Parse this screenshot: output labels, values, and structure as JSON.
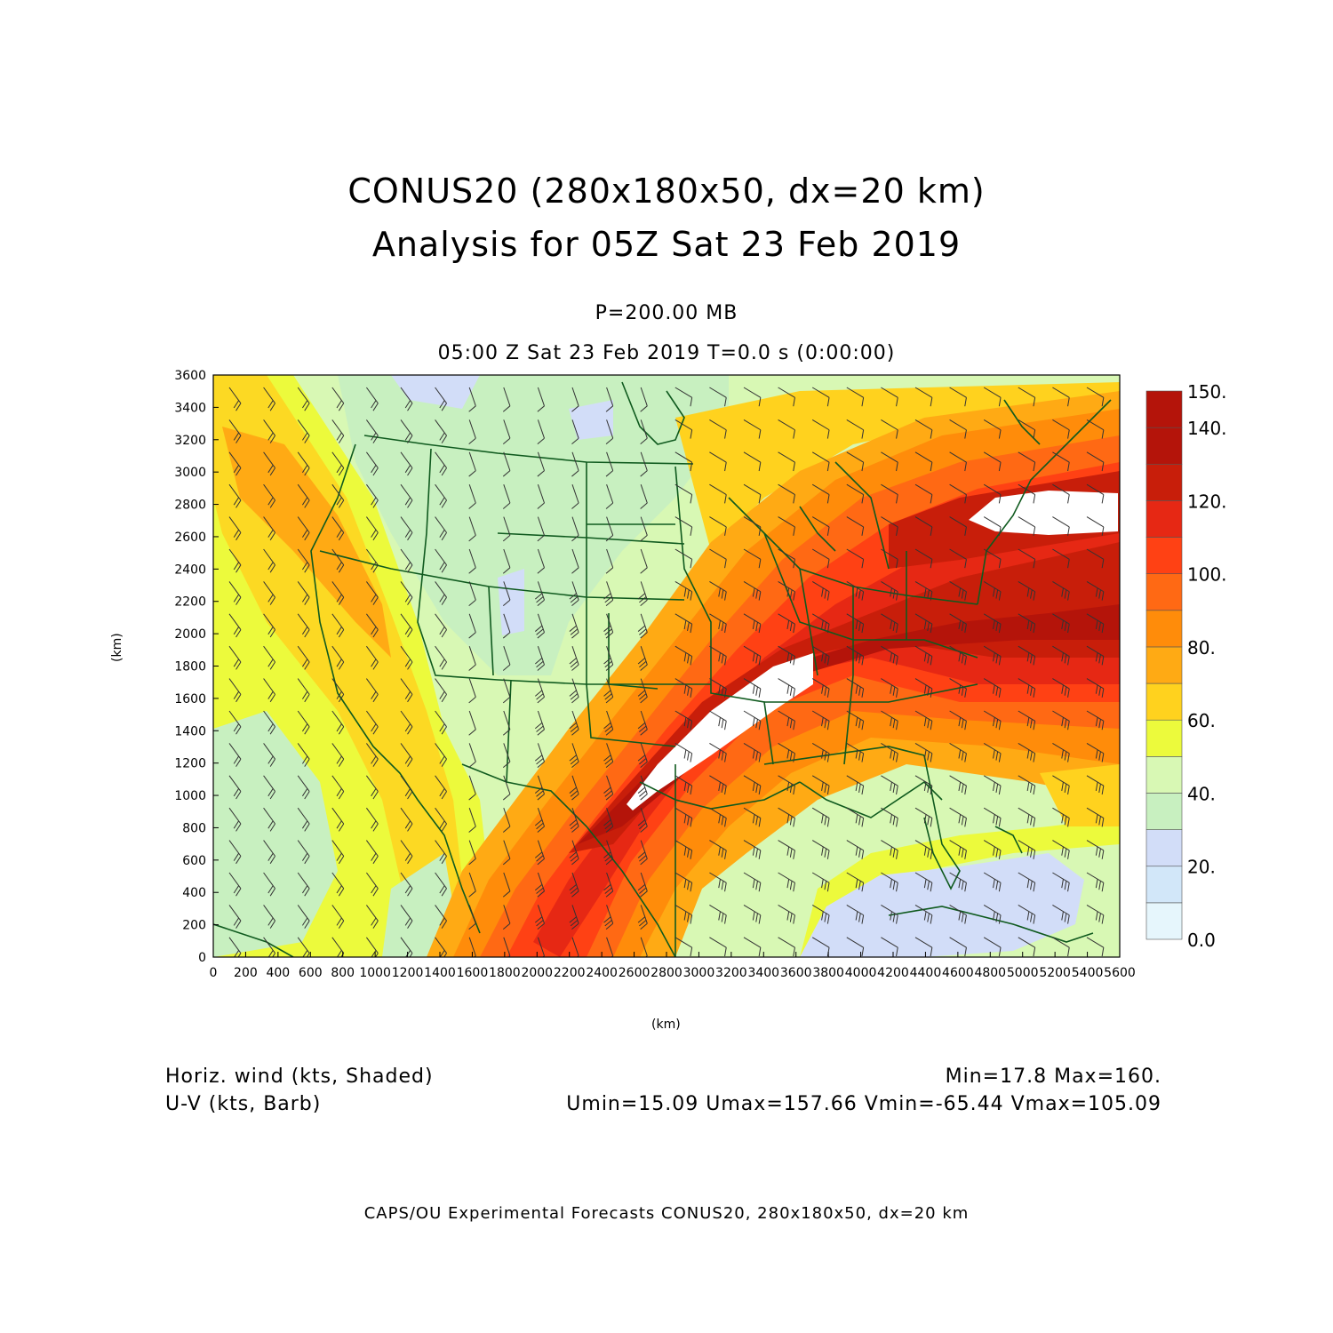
{
  "title": {
    "line1": "CONUS20 (280x180x50, dx=20 km)",
    "line2": "Analysis for 05Z Sat 23 Feb 2019"
  },
  "subtitle": {
    "level": "P=200.00 MB",
    "time": "05:00 Z Sat 23 Feb 2019    T=0.0 s (0:00:00)"
  },
  "axes": {
    "x_unit": "(km)",
    "y_unit": "(km)",
    "x_ticks": [
      "0",
      "200",
      "400",
      "600",
      "800",
      "1000",
      "1200",
      "1400",
      "1600",
      "1800",
      "2000",
      "2200",
      "2400",
      "2600",
      "2800",
      "3000",
      "3200",
      "3400",
      "3600",
      "3800",
      "4000",
      "4200",
      "4400",
      "4600",
      "4800",
      "5000",
      "5200",
      "5400",
      "5600"
    ],
    "y_ticks": [
      "0",
      "200",
      "400",
      "600",
      "800",
      "1000",
      "1200",
      "1400",
      "1600",
      "1800",
      "2000",
      "2200",
      "2400",
      "2600",
      "2800",
      "3000",
      "3200",
      "3400",
      "3600"
    ],
    "x_range": [
      0,
      5600
    ],
    "y_range": [
      0,
      3600
    ]
  },
  "colorbar": {
    "labels": [
      "0.0",
      "20.",
      "40.",
      "60.",
      "80.",
      "100.",
      "120.",
      "140.",
      "150."
    ],
    "levels": [
      0,
      10,
      20,
      30,
      40,
      50,
      60,
      70,
      80,
      90,
      100,
      110,
      120,
      130,
      140,
      150
    ],
    "colors": [
      "#e6f6fc",
      "#d2e7f9",
      "#d2ddf8",
      "#c8f0c0",
      "#d8f8b4",
      "#ecfa3c",
      "#ffd21e",
      "#ffaa14",
      "#ff8c0a",
      "#ff6914",
      "#ff4114",
      "#e62814",
      "#c81e0a",
      "#b4140a",
      "#ffffff"
    ]
  },
  "legend": {
    "field1": "Horiz. wind (kts, Shaded)",
    "field2": "U-V (kts, Barb)",
    "stats1": "Min=17.8 Max=160.",
    "stats2": "Umin=15.09 Umax=157.66 Vmin=-65.44 Vmax=105.09"
  },
  "footer": "CAPS/OU Experimental Forecasts  CONUS20, 280x180x50, dx=20 km",
  "map": {
    "field": "Horizontal wind speed at 200 mb",
    "jet_max_kts": 160,
    "boundary_color": "#0f5a1e"
  }
}
